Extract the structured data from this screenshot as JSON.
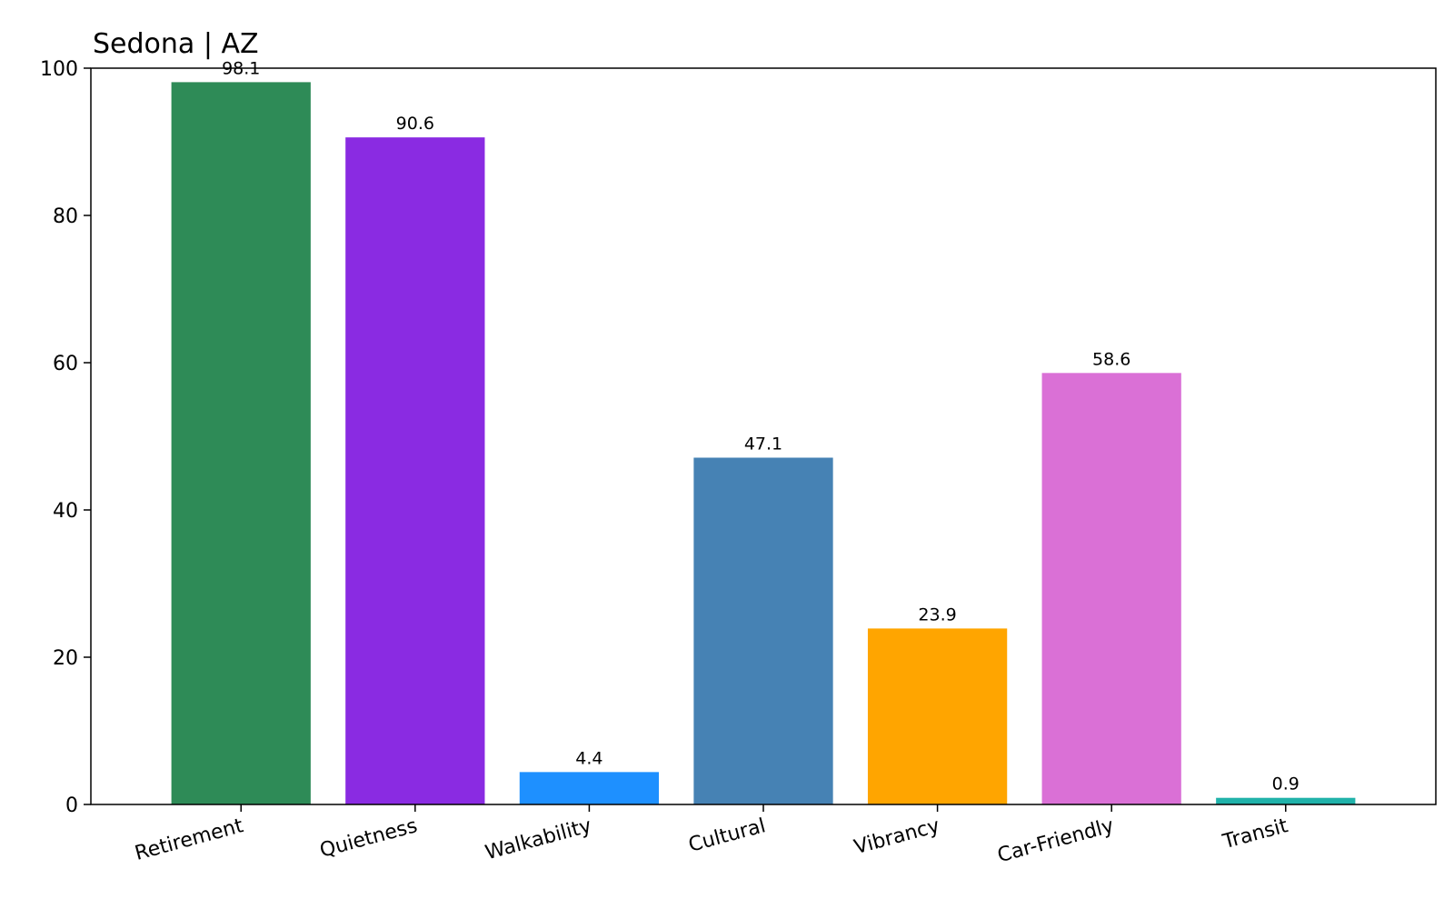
{
  "chart_data": {
    "type": "bar",
    "title": "Sedona | AZ",
    "categories": [
      "Retirement",
      "Quietness",
      "Walkability",
      "Cultural",
      "Vibrancy",
      "Car-Friendly",
      "Transit"
    ],
    "values": [
      98.1,
      90.6,
      4.4,
      47.1,
      23.9,
      58.6,
      0.9
    ],
    "colors": [
      "#2e8b57",
      "#8a2be2",
      "#1e90ff",
      "#4682b4",
      "#ffa500",
      "#da70d6",
      "#20b2aa"
    ],
    "ylim": [
      0,
      100
    ],
    "yticks": [
      0,
      20,
      40,
      60,
      80,
      100
    ],
    "grid": false
  }
}
